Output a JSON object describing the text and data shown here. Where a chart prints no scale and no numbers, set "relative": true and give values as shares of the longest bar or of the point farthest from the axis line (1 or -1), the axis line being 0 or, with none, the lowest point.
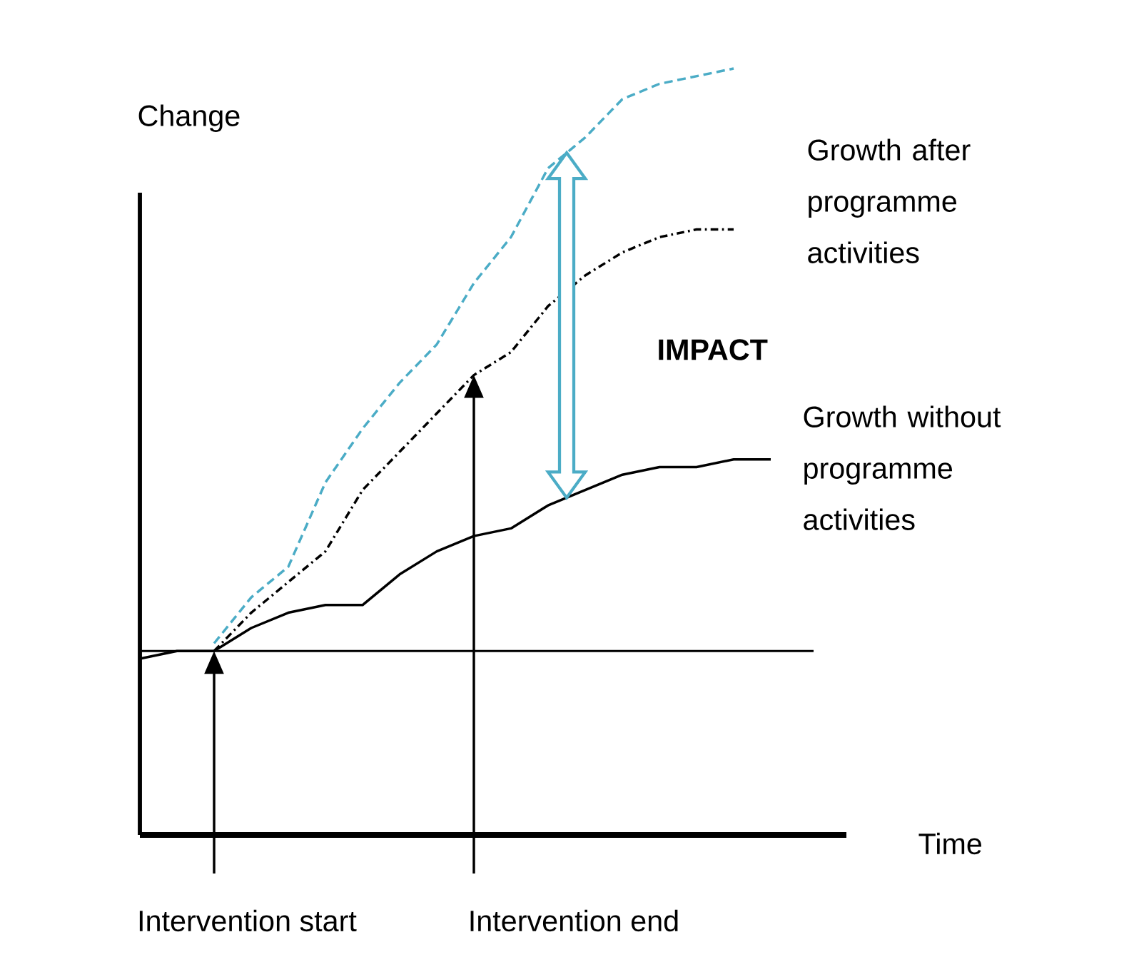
{
  "chart_data": {
    "type": "line",
    "relative": true,
    "xlabel": "Time",
    "ylabel": "Change",
    "categories": [
      null,
      null,
      null,
      null,
      null,
      null,
      null,
      null,
      null,
      null,
      null,
      null,
      null,
      null,
      null,
      null,
      null,
      null
    ],
    "series": [
      {
        "name": "Growth without programme activities",
        "color": "#000000",
        "line_style": "solid",
        "values": [
          0.23,
          0.24,
          0.24,
          0.27,
          0.29,
          0.3,
          0.3,
          0.34,
          0.37,
          0.39,
          0.4,
          0.43,
          0.45,
          0.47,
          0.48,
          0.48,
          0.49,
          0.49
        ]
      },
      {
        "name": "Growth after programme activities",
        "color": "#000000",
        "line_style": "dashdot",
        "values": [
          null,
          null,
          0.24,
          0.29,
          0.33,
          0.37,
          0.45,
          0.5,
          0.55,
          0.6,
          0.63,
          0.69,
          0.73,
          0.76,
          0.78,
          0.79,
          0.79,
          null
        ]
      },
      {
        "color": "#4bacc6",
        "line_style": "dashed",
        "values": [
          null,
          null,
          0.25,
          0.31,
          0.35,
          0.46,
          0.53,
          0.59,
          0.64,
          0.72,
          0.78,
          0.87,
          0.91,
          0.96,
          0.98,
          0.99,
          1.0,
          null
        ]
      }
    ],
    "ref_lines": [
      {
        "axis": "y",
        "value": 0.24
      }
    ],
    "annotations": [
      "IMPACT",
      "Intervention start",
      "Intervention end"
    ]
  }
}
